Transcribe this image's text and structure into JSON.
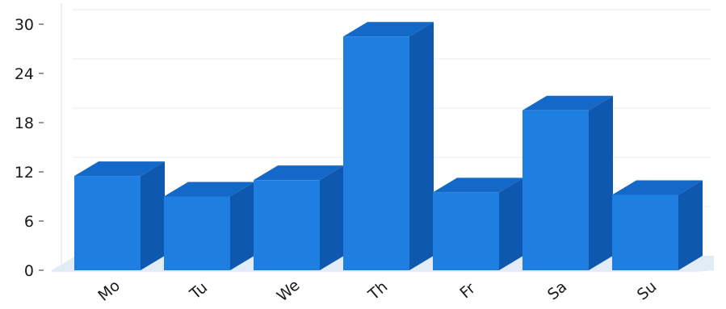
{
  "chart_data": {
    "type": "bar",
    "categories": [
      "Mo",
      "Tu",
      "We",
      "Th",
      "Fr",
      "Sa",
      "Su"
    ],
    "values": [
      11.5,
      9,
      11,
      28.5,
      9.5,
      19.5,
      9.2
    ],
    "ylim": [
      0,
      30
    ],
    "yticks": [
      "0",
      "6",
      "12",
      "18",
      "24",
      "30"
    ],
    "grid": true,
    "style": "3d",
    "colors": {
      "bar_front": "#1f7fe0",
      "bar_top": "#1468c8",
      "bar_side": "#0f58b0",
      "grid": "#e6ecf3",
      "floor": "#c9dcf0",
      "axis": "#555555"
    }
  }
}
